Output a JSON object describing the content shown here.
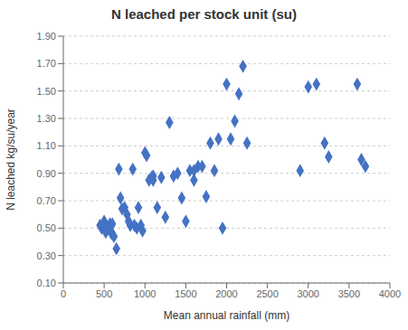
{
  "chart_data": {
    "type": "scatter",
    "title": "N leached per stock unit (su)",
    "xlabel": "Mean annual rainfall (mm)",
    "ylabel": "N leached kg/su/year",
    "x": [
      450,
      470,
      500,
      510,
      520,
      540,
      550,
      560,
      570,
      580,
      590,
      600,
      620,
      650,
      680,
      700,
      720,
      750,
      780,
      800,
      820,
      850,
      870,
      900,
      920,
      950,
      970,
      1000,
      1020,
      1050,
      1080,
      1100,
      1100,
      1150,
      1200,
      1250,
      1300,
      1350,
      1400,
      1450,
      1500,
      1550,
      1600,
      1600,
      1650,
      1700,
      1750,
      1800,
      1850,
      1900,
      1950,
      2000,
      2050,
      2100,
      2150,
      2200,
      2250,
      2900,
      3000,
      3100,
      3200,
      3250,
      3600,
      3650,
      3700
    ],
    "values": [
      0.52,
      0.5,
      0.55,
      0.5,
      0.47,
      0.5,
      0.5,
      0.5,
      0.53,
      0.48,
      0.46,
      0.53,
      0.44,
      0.35,
      0.93,
      0.72,
      0.64,
      0.65,
      0.6,
      0.55,
      0.52,
      0.93,
      0.52,
      0.5,
      0.65,
      0.52,
      0.48,
      1.05,
      1.03,
      0.85,
      0.87,
      0.88,
      0.85,
      0.65,
      0.87,
      0.58,
      1.27,
      0.88,
      0.9,
      0.72,
      0.55,
      0.92,
      0.92,
      0.85,
      0.95,
      0.95,
      0.73,
      1.12,
      0.92,
      1.15,
      0.5,
      1.55,
      1.15,
      1.28,
      1.48,
      1.68,
      1.12,
      0.92,
      1.53,
      1.55,
      1.12,
      1.02,
      1.55,
      1.0,
      0.95
    ],
    "color": "#4472C4",
    "marker": "diamond",
    "xlim": [
      0,
      4000
    ],
    "ylim": [
      0.1,
      1.9
    ],
    "xticks": [
      0,
      500,
      1000,
      1500,
      2000,
      2500,
      3000,
      3500,
      4000
    ],
    "yticks": [
      {
        "value": 0.1,
        "label": "0.10"
      },
      {
        "value": 0.3,
        "label": "0.30"
      },
      {
        "value": 0.5,
        "label": "0.50"
      },
      {
        "value": 0.7,
        "label": "0.70"
      },
      {
        "value": 0.9,
        "label": "0.90"
      },
      {
        "value": 1.1,
        "label": "1.10"
      },
      {
        "value": 1.3,
        "label": "1.30"
      },
      {
        "value": 1.5,
        "label": "1.50"
      },
      {
        "value": 1.7,
        "label": "1.70"
      },
      {
        "value": 1.9,
        "label": "1.90"
      }
    ],
    "grid": "y"
  }
}
